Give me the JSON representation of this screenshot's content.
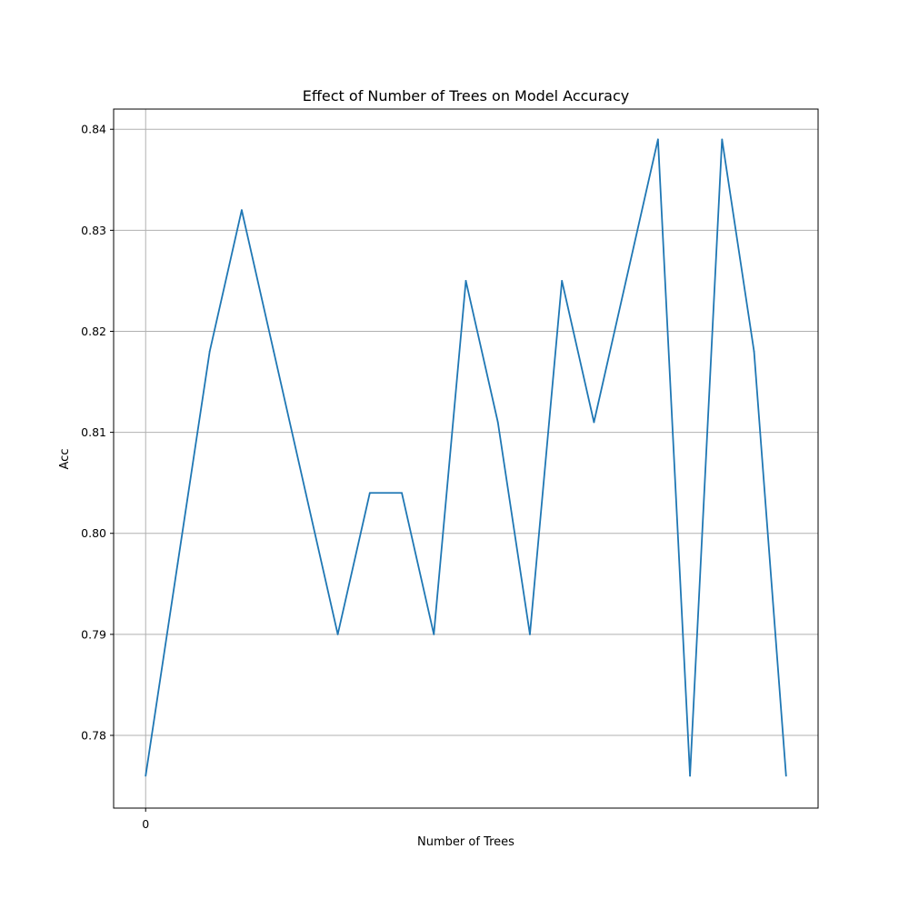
{
  "chart_data": {
    "type": "line",
    "title": "Effect of Number of Trees on Model Accuracy",
    "xlabel": "Number of Trees",
    "ylabel": "Acc",
    "x_tick_labels": [
      "0"
    ],
    "y_ticks": [
      0.78,
      0.79,
      0.8,
      0.81,
      0.82,
      0.83,
      0.84
    ],
    "y_tick_labels": [
      "0.78",
      "0.79",
      "0.80",
      "0.81",
      "0.82",
      "0.83",
      "0.84"
    ],
    "ylim": [
      0.7728,
      0.842
    ],
    "grid": true,
    "series": [
      {
        "color": "#1f77b4",
        "x": [
          0,
          1,
          2,
          3,
          4,
          5,
          6,
          7,
          8,
          9,
          10,
          11,
          12,
          13,
          14,
          15,
          16,
          17,
          18,
          19,
          20
        ],
        "values": [
          0.776,
          0.797,
          0.818,
          0.832,
          0.818,
          0.804,
          0.79,
          0.804,
          0.804,
          0.79,
          0.825,
          0.811,
          0.79,
          0.825,
          0.811,
          0.825,
          0.839,
          0.776,
          0.839,
          0.818,
          0.776
        ]
      }
    ]
  }
}
